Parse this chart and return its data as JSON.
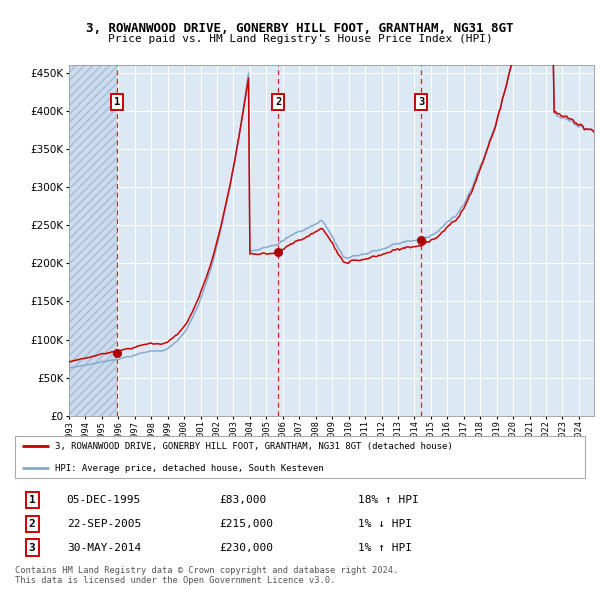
{
  "title": "3, ROWANWOOD DRIVE, GONERBY HILL FOOT, GRANTHAM, NG31 8GT",
  "subtitle": "Price paid vs. HM Land Registry's House Price Index (HPI)",
  "legend_line1": "3, ROWANWOOD DRIVE, GONERBY HILL FOOT, GRANTHAM, NG31 8GT (detached house)",
  "legend_line2": "HPI: Average price, detached house, South Kesteven",
  "sale1_date": "05-DEC-1995",
  "sale1_price": 83000,
  "sale1_hpi": "18% ↑ HPI",
  "sale2_date": "22-SEP-2005",
  "sale2_price": 215000,
  "sale2_hpi": "1% ↓ HPI",
  "sale3_date": "30-MAY-2014",
  "sale3_price": 230000,
  "sale3_hpi": "1% ↑ HPI",
  "footer1": "Contains HM Land Registry data © Crown copyright and database right 2024.",
  "footer2": "This data is licensed under the Open Government Licence v3.0.",
  "red_line_color": "#cc0000",
  "blue_line_color": "#88aacc",
  "plot_bg": "#dde8f5",
  "grid_color": "#ffffff",
  "dashed_line_color": "#dd2222",
  "marker_color": "#aa0000",
  "box_color": "#cc0000",
  "ylim": [
    0,
    460000
  ],
  "yticks": [
    0,
    50000,
    100000,
    150000,
    200000,
    250000,
    300000,
    350000,
    400000,
    450000
  ]
}
